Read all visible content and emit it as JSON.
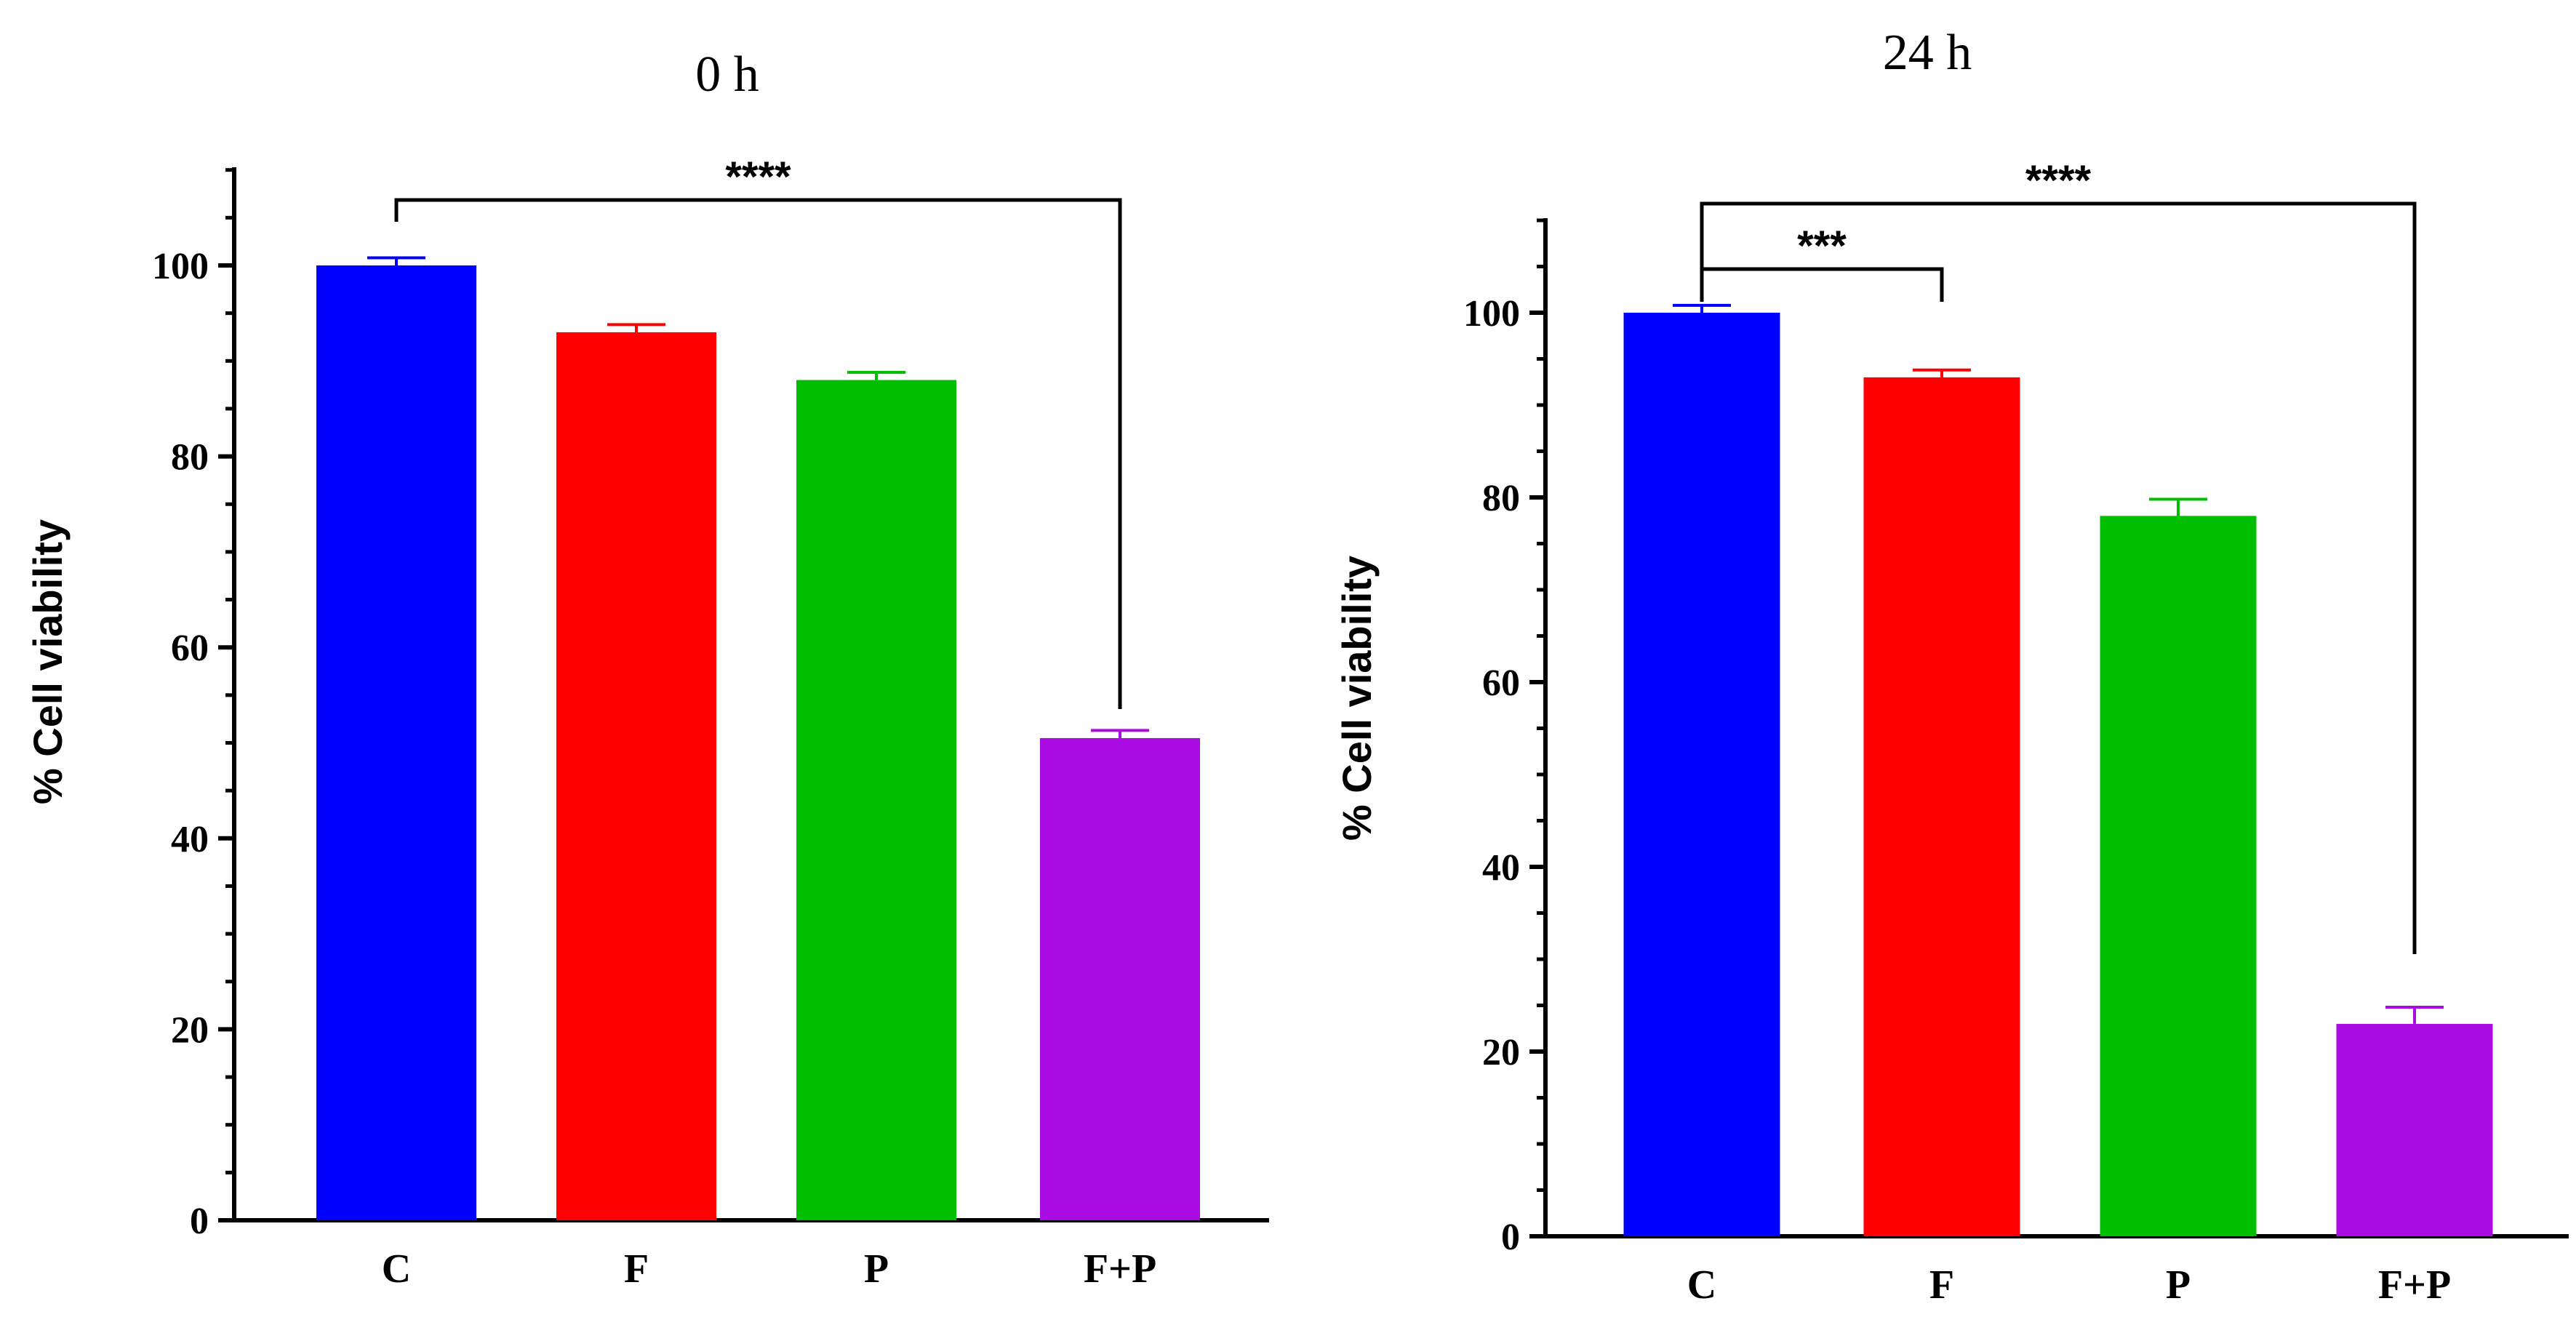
{
  "chart_data": [
    {
      "type": "bar",
      "title": "0 h",
      "ylabel": "% Cell viability",
      "xlabel": "",
      "ylim": [
        0,
        110
      ],
      "yticks": [
        0,
        20,
        40,
        60,
        80,
        100
      ],
      "categories": [
        "C",
        "F",
        "P",
        "F+P"
      ],
      "values": [
        100,
        93,
        88,
        50.5
      ],
      "errors": [
        0.8,
        0.8,
        0.8,
        0.8
      ],
      "colors": [
        "#0000ff",
        "#ff0000",
        "#00bf00",
        "#a80ce3"
      ],
      "significance": [
        {
          "from": "C",
          "to": "F+P",
          "label": "****"
        }
      ]
    },
    {
      "type": "bar",
      "title": "24 h",
      "ylabel": "% Cell viability",
      "xlabel": "",
      "ylim": [
        0,
        110
      ],
      "yticks": [
        0,
        20,
        40,
        60,
        80,
        100
      ],
      "categories": [
        "C",
        "F",
        "P",
        "F+P"
      ],
      "values": [
        100,
        93,
        78,
        23
      ],
      "errors": [
        0.8,
        0.8,
        1.8,
        1.8
      ],
      "colors": [
        "#0000ff",
        "#ff0000",
        "#00bf00",
        "#a80ce3"
      ],
      "significance": [
        {
          "from": "C",
          "to": "F",
          "label": "***"
        },
        {
          "from": "C",
          "to": "F+P",
          "label": "****"
        }
      ]
    }
  ]
}
